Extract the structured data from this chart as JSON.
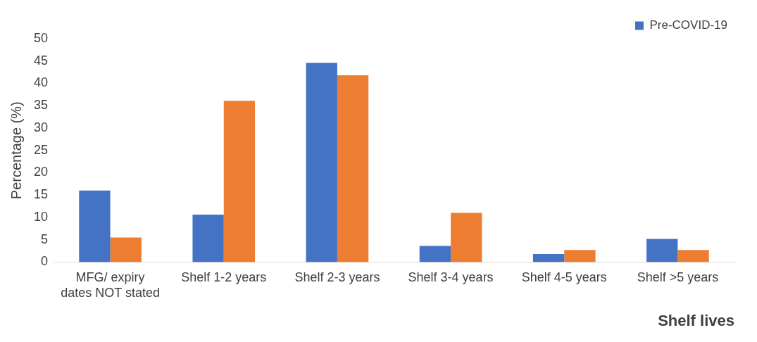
{
  "chart_data": {
    "type": "bar",
    "xlabel": "Shelf lives",
    "ylabel": "Percentage (%)",
    "categories": [
      "MFG/ expiry dates NOT stated",
      "Shelf 1-2 years",
      "Shelf 2-3 years",
      "Shelf 3-4 years",
      "Shelf 4-5 years",
      "Shelf >5 years"
    ],
    "series": [
      {
        "name": "Pre-COVID-19",
        "color": "#4472c4",
        "values": [
          16.0,
          10.6,
          44.6,
          3.6,
          1.8,
          5.2
        ]
      },
      {
        "color": "#ed7d31",
        "values": [
          5.5,
          36.1,
          41.8,
          11.0,
          2.7,
          2.7
        ]
      }
    ],
    "ylim": [
      0,
      50
    ],
    "yticks": [
      0,
      5,
      10,
      15,
      20,
      25,
      30,
      35,
      40,
      45,
      50
    ],
    "grid": false,
    "legend": "top right"
  }
}
